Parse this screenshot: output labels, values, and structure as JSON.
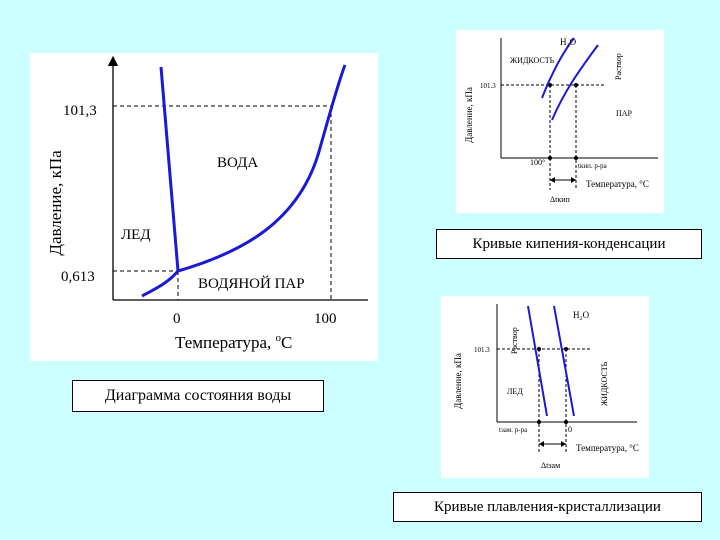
{
  "main_diagram": {
    "ylabel": "Давление, кПа",
    "xlabel": "Температура, °С",
    "xlabel_base": "Температура, ",
    "xlabel_degree": "o",
    "xlabel_unit": "С",
    "y_tick_top": "101,3",
    "y_tick_bottom": "0,613",
    "x_tick_left": "0",
    "x_tick_right": "100",
    "region_water": "ВОДА",
    "region_ice": "ЛЕД",
    "region_vapor": "ВОДЯНОЙ ПАР",
    "caption": "Диаграмма состояния воды"
  },
  "boiling_diagram": {
    "ylabel": "Давление, кПа",
    "label_h2o": "H₂O",
    "label_liquid": "ЖИДКОСТЬ",
    "label_solution": "Раствор",
    "label_vapor": "ПАР",
    "y_tick": "101.3",
    "x_tick_100": "100°",
    "x_tick_solution": "tкип. р-ра",
    "xlabel": "Температура, °С",
    "delta_label": "Δtкип",
    "caption": "Кривые кипения-конденсации"
  },
  "melting_diagram": {
    "ylabel": "Давление, кПа",
    "label_h2o": "H₂O",
    "label_solution": "Раствор",
    "label_liquid": "ЖИДКОСТЬ",
    "label_ice": "ЛЕД",
    "y_tick": "101.3",
    "x_tick_solution": "tзам. р-ра",
    "x_tick_zero": "0",
    "xlabel": "Температура, °С",
    "delta_label": "Δtзам",
    "caption": "Кривые плавления-кристаллизации"
  },
  "colors": {
    "background": "#ccffff",
    "curve": "#1a1ad6",
    "axis": "#000000"
  }
}
